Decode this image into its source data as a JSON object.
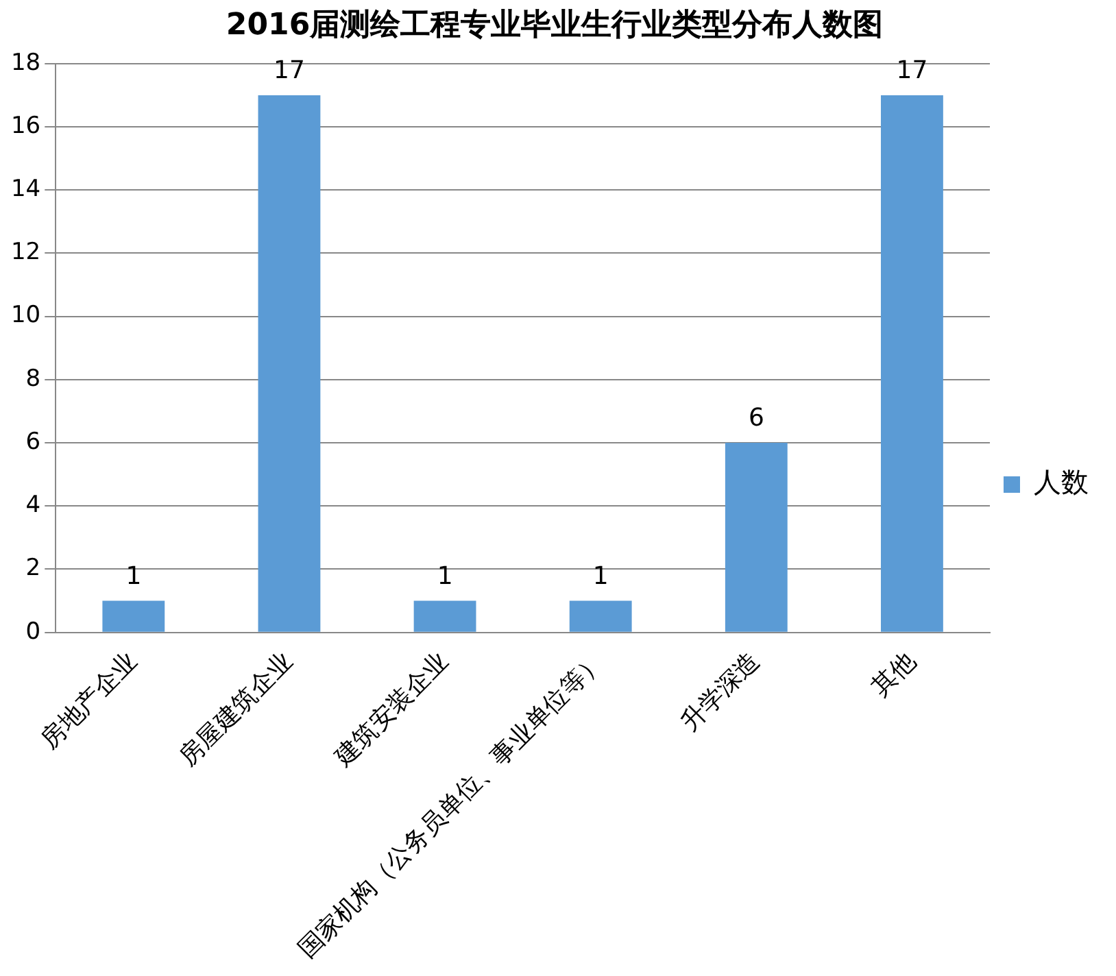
{
  "chart_data": {
    "type": "bar",
    "title": "2016届测绘工程专业毕业生行业类型分布人数图",
    "categories": [
      "房地产企业",
      "房屋建筑企业",
      "建筑安装企业",
      "国家机构（公务员单位、事业单位等）",
      "升学深造",
      "其他"
    ],
    "series": [
      {
        "name": "人数",
        "color": "#5b9bd5",
        "values": [
          1,
          17,
          1,
          1,
          6,
          17
        ]
      }
    ],
    "ylim": [
      0,
      18
    ],
    "yticks": [
      0,
      2,
      4,
      6,
      8,
      10,
      12,
      14,
      16,
      18
    ],
    "grid": "y",
    "legend": "right",
    "data_labels": true
  }
}
